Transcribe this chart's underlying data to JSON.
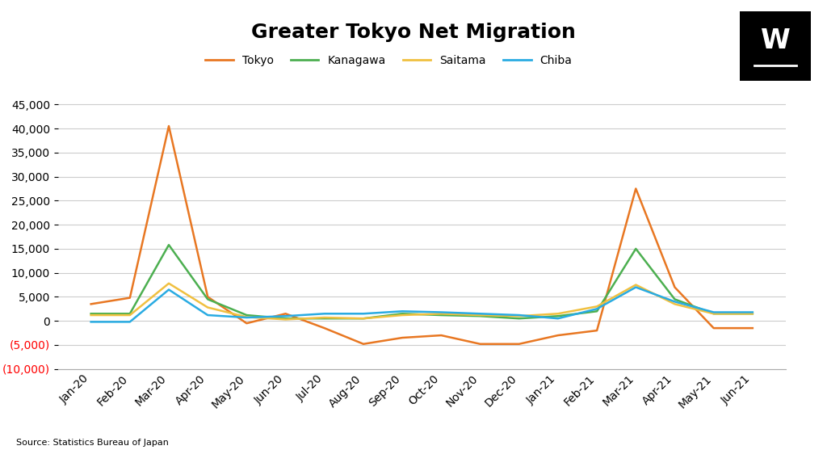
{
  "title": "Greater Tokyo Net Migration",
  "source": "Source: Statistics Bureau of Japan",
  "months": [
    "Jan-20",
    "Feb-20",
    "Mar-20",
    "Apr-20",
    "May-20",
    "Jun-20",
    "Jul-20",
    "Aug-20",
    "Sep-20",
    "Oct-20",
    "Nov-20",
    "Dec-20",
    "Jan-21",
    "Feb-21",
    "Mar-21",
    "Apr-21",
    "May-21",
    "Jun-21"
  ],
  "tokyo": [
    3500,
    4800,
    40500,
    5000,
    -500,
    1500,
    -1500,
    -4800,
    -3500,
    -3000,
    -4800,
    -4800,
    -3000,
    -2000,
    27500,
    7000,
    -1500,
    -1500
  ],
  "kanagawa": [
    1500,
    1500,
    15800,
    4500,
    1200,
    500,
    500,
    500,
    1500,
    1200,
    1000,
    500,
    1000,
    2000,
    15000,
    4500,
    1500,
    1500
  ],
  "saitama": [
    1200,
    1200,
    7800,
    2800,
    800,
    300,
    700,
    500,
    1200,
    1500,
    1200,
    1000,
    1500,
    3000,
    7500,
    3500,
    1500,
    1500
  ],
  "chiba": [
    -200,
    -200,
    6500,
    1200,
    700,
    1000,
    1500,
    1500,
    2000,
    1800,
    1500,
    1200,
    500,
    2500,
    7000,
    4000,
    1800,
    1800
  ],
  "colors": {
    "tokyo": "#E87722",
    "kanagawa": "#4CAF50",
    "saitama": "#F0C040",
    "chiba": "#29ABE2"
  },
  "ylim": [
    -10000,
    48000
  ],
  "yticks": [
    -10000,
    -5000,
    0,
    5000,
    10000,
    15000,
    20000,
    25000,
    30000,
    35000,
    40000,
    45000
  ],
  "background_color": "#FFFFFF",
  "grid_color": "#CCCCCC",
  "title_fontsize": 18,
  "label_fontsize": 10
}
